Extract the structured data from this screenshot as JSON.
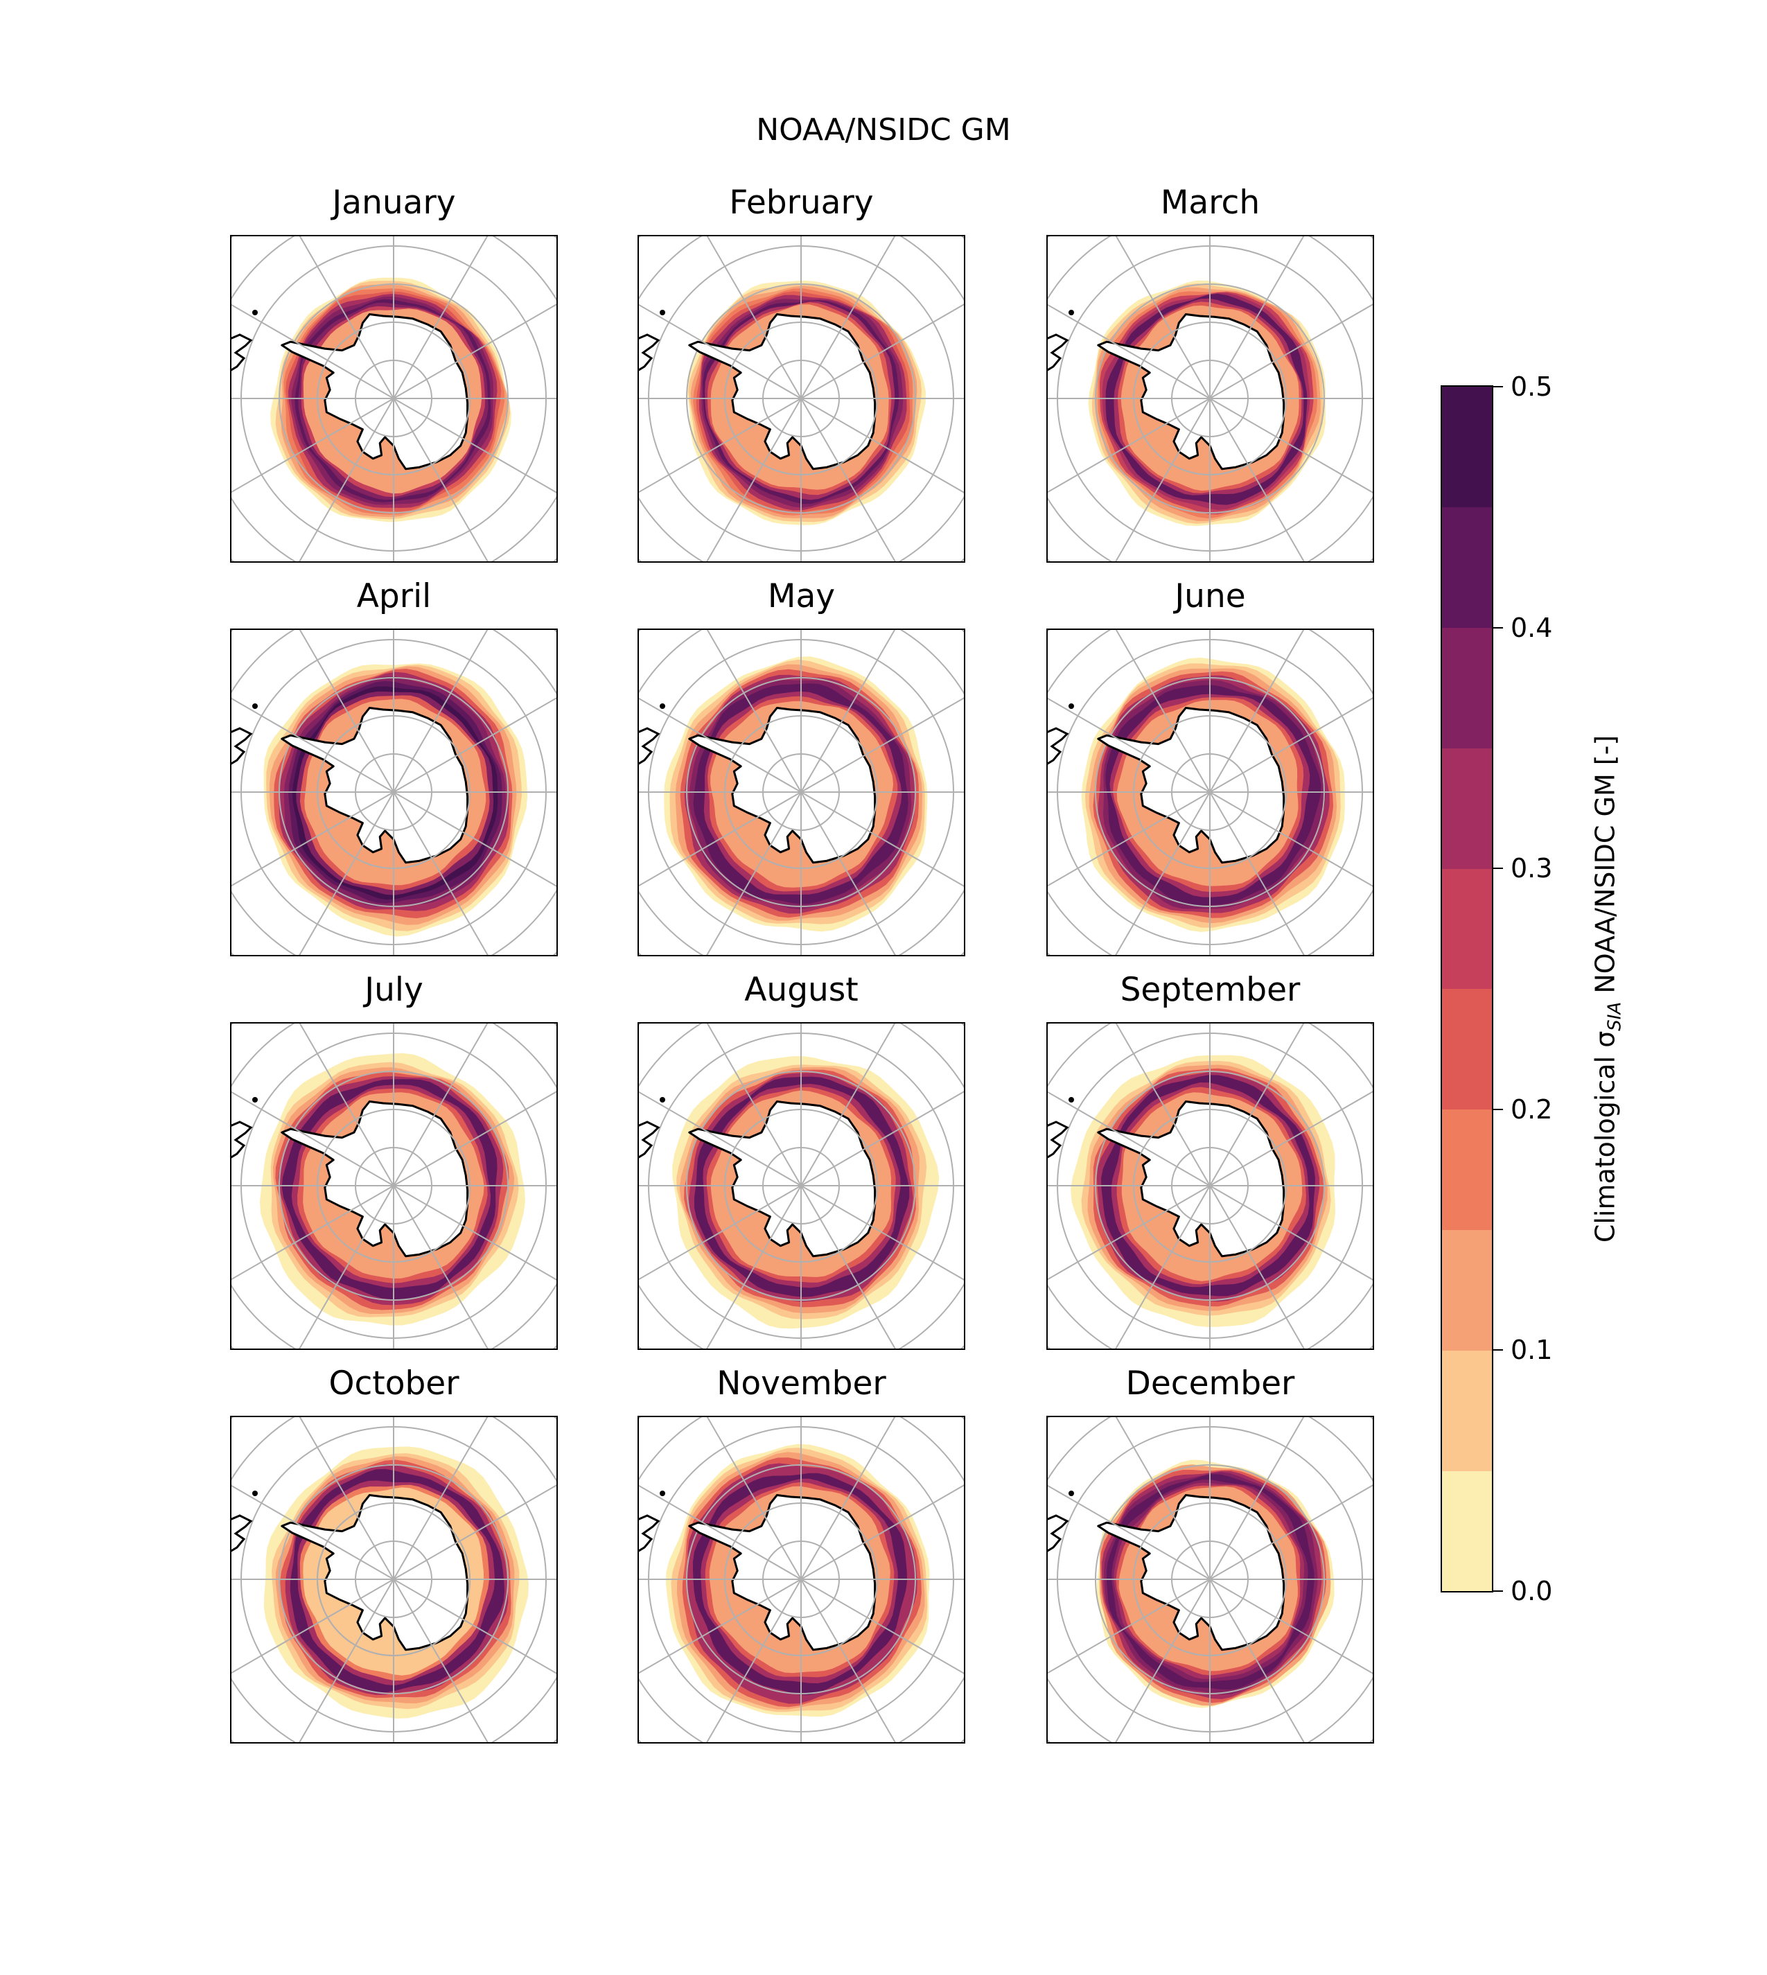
{
  "figure": {
    "title": "NOAA/NSIDC GM"
  },
  "chart_data": {
    "type": "heatmap",
    "projection": "south-polar-stereographic",
    "grid": true,
    "colormap": "magma_r",
    "panels": [
      {
        "title": "January",
        "ring": [
          0.0,
          0.05,
          0.1,
          0.15,
          0.2,
          0.3,
          0.35,
          0.4,
          0.35,
          0.25,
          0.1
        ]
      },
      {
        "title": "February",
        "ring": [
          0.0,
          0.05,
          0.1,
          0.15,
          0.2,
          0.3,
          0.35,
          0.4,
          0.3,
          0.2,
          0.1
        ]
      },
      {
        "title": "March",
        "ring": [
          0.0,
          0.05,
          0.1,
          0.15,
          0.25,
          0.3,
          0.4,
          0.4,
          0.3,
          0.2,
          0.1
        ]
      },
      {
        "title": "April",
        "ring": [
          0.0,
          0.05,
          0.1,
          0.2,
          0.3,
          0.35,
          0.4,
          0.45,
          0.35,
          0.2,
          0.1
        ]
      },
      {
        "title": "May",
        "ring": [
          0.0,
          0.05,
          0.1,
          0.2,
          0.3,
          0.35,
          0.4,
          0.4,
          0.3,
          0.2,
          0.1
        ]
      },
      {
        "title": "June",
        "ring": [
          0.0,
          0.05,
          0.1,
          0.2,
          0.3,
          0.35,
          0.4,
          0.4,
          0.3,
          0.2,
          0.1
        ]
      },
      {
        "title": "July",
        "ring": [
          0.0,
          0.0,
          0.05,
          0.1,
          0.2,
          0.3,
          0.4,
          0.4,
          0.3,
          0.2,
          0.1
        ]
      },
      {
        "title": "August",
        "ring": [
          0.0,
          0.0,
          0.05,
          0.1,
          0.2,
          0.3,
          0.4,
          0.4,
          0.3,
          0.2,
          0.1
        ]
      },
      {
        "title": "September",
        "ring": [
          0.0,
          0.0,
          0.05,
          0.1,
          0.2,
          0.3,
          0.4,
          0.4,
          0.3,
          0.2,
          0.1
        ]
      },
      {
        "title": "October",
        "ring": [
          0.0,
          0.0,
          0.05,
          0.1,
          0.2,
          0.3,
          0.4,
          0.4,
          0.3,
          0.15,
          0.05
        ]
      },
      {
        "title": "November",
        "ring": [
          0.0,
          0.05,
          0.1,
          0.2,
          0.3,
          0.3,
          0.4,
          0.4,
          0.3,
          0.2,
          0.1
        ]
      },
      {
        "title": "December",
        "ring": [
          0.0,
          0.1,
          0.2,
          0.3,
          0.35,
          0.4,
          0.4,
          0.35,
          0.3,
          0.2,
          0.1
        ]
      }
    ],
    "colorbar": {
      "label": "Climatological σ",
      "label_sub": "SIA",
      "label_suffix": " NOAA/NSIDC GM [-]",
      "vmin": 0.0,
      "vmax": 0.5,
      "bounds": [
        0.0,
        0.05,
        0.1,
        0.15,
        0.2,
        0.25,
        0.3,
        0.35,
        0.4,
        0.45,
        0.5
      ],
      "colors": [
        "#fcedb0",
        "#fbc78f",
        "#f6a075",
        "#ef7c5c",
        "#e05a55",
        "#c7405b",
        "#a52f60",
        "#832260",
        "#60185c",
        "#43124e",
        "#2a0d35"
      ],
      "ticks": [
        "0.0",
        "0.1",
        "0.2",
        "0.3",
        "0.4",
        "0.5"
      ]
    }
  }
}
